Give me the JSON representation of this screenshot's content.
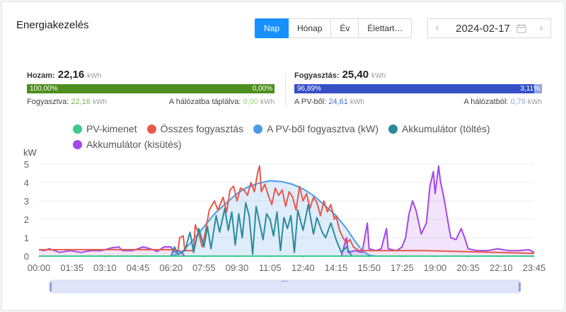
{
  "title": "Energiakezelés",
  "tabs": [
    {
      "label": "Nap",
      "active": true
    },
    {
      "label": "Hónap",
      "active": false
    },
    {
      "label": "Év",
      "active": false
    },
    {
      "label": "Élettart…",
      "active": false
    }
  ],
  "date": {
    "value": "2024-02-17",
    "prev_icon": "chevron-left-icon",
    "next_icon": "chevron-right-icon",
    "calendar_icon": "calendar-icon"
  },
  "yield": {
    "label": "Hozam:",
    "value": "22,16",
    "unit": "kWh",
    "bar_left_pct": "100,00%",
    "bar_right_pct": "0,00%",
    "bar_left_fraction": 1.0,
    "bar_left_color": "#4d8f1e",
    "bar_right_color": "#a7d28a",
    "consumed_label": "Fogyasztva:",
    "consumed_value": "22,16",
    "consumed_unit": "kWh",
    "fed_label": "A hálózatba táplálva:",
    "fed_value": "0,00",
    "fed_unit": "kWh"
  },
  "consumption": {
    "label": "Fogyasztás:",
    "value": "25,40",
    "unit": "kWh",
    "bar_left_pct": "96,89%",
    "bar_right_pct": "3,11%",
    "bar_left_fraction": 0.9689,
    "bar_left_color": "#3550c7",
    "bar_right_color": "#8fa6ef",
    "pv_label": "A PV-ből:",
    "pv_value": "24,61",
    "pv_unit": "kWh",
    "grid_label": "A hálózatból:",
    "grid_value": "0,79",
    "grid_unit": "kWh"
  },
  "legend": [
    {
      "name": "PV-kimenet",
      "color": "#3cc98a"
    },
    {
      "name": "Összes fogyasztás",
      "color": "#e8584b"
    },
    {
      "name": "A PV-ből fogyasztva (kW)",
      "color": "#4c9be8"
    },
    {
      "name": "Akkumulátor (töltés)",
      "color": "#2b8a9b"
    },
    {
      "name": "Akkumulátor (kisütés)",
      "color": "#a348e6"
    }
  ],
  "chart_data": {
    "type": "line",
    "ylabel": "kW",
    "ylim": [
      0,
      5
    ],
    "yticks": [
      0,
      1,
      2,
      3,
      4,
      5
    ],
    "xticks": [
      "00:00",
      "01:35",
      "03:10",
      "04:45",
      "06:20",
      "07:55",
      "09:30",
      "11:05",
      "12:40",
      "14:15",
      "15:50",
      "17:25",
      "19:00",
      "20:35",
      "22:10",
      "23:45"
    ],
    "grid": true,
    "series": [
      {
        "name": "PV-kimenet",
        "color": "#3cc98a",
        "points": [
          [
            "00:00",
            0
          ],
          [
            "23:45",
            0
          ]
        ]
      },
      {
        "name": "A PV-ből fogyasztva (kW)",
        "color": "#4c9be8",
        "area": true,
        "points": [
          [
            "06:20",
            0
          ],
          [
            "06:50",
            0.2
          ],
          [
            "07:20",
            0.8
          ],
          [
            "07:55",
            1.6
          ],
          [
            "08:25",
            2.3
          ],
          [
            "09:00",
            2.9
          ],
          [
            "09:30",
            3.4
          ],
          [
            "10:00",
            3.75
          ],
          [
            "10:30",
            3.95
          ],
          [
            "11:05",
            4.1
          ],
          [
            "11:40",
            4.05
          ],
          [
            "12:10",
            3.9
          ],
          [
            "12:40",
            3.65
          ],
          [
            "13:10",
            3.3
          ],
          [
            "13:40",
            2.8
          ],
          [
            "14:15",
            2.2
          ],
          [
            "14:45",
            1.5
          ],
          [
            "15:10",
            0.8
          ],
          [
            "15:30",
            0.3
          ],
          [
            "15:50",
            0.05
          ],
          [
            "16:10",
            0
          ]
        ]
      },
      {
        "name": "Összes fogyasztás",
        "color": "#e8584b",
        "points": [
          [
            "00:00",
            0.35
          ],
          [
            "06:20",
            0.35
          ],
          [
            "06:40",
            0.3
          ],
          [
            "06:45",
            1.0
          ],
          [
            "06:55",
            1.1
          ],
          [
            "07:00",
            0.3
          ],
          [
            "07:25",
            0.3
          ],
          [
            "07:30",
            1.7
          ],
          [
            "07:40",
            1.2
          ],
          [
            "07:50",
            0.5
          ],
          [
            "08:00",
            1.4
          ],
          [
            "08:10",
            2.5
          ],
          [
            "08:25",
            3.0
          ],
          [
            "08:35",
            2.5
          ],
          [
            "08:50",
            3.2
          ],
          [
            "09:00",
            2.4
          ],
          [
            "09:10",
            3.6
          ],
          [
            "09:20",
            3.8
          ],
          [
            "09:30",
            3.0
          ],
          [
            "09:40",
            3.7
          ],
          [
            "09:50",
            3.6
          ],
          [
            "10:00",
            3.3
          ],
          [
            "10:10",
            4.0
          ],
          [
            "10:20",
            3.5
          ],
          [
            "10:30",
            4.6
          ],
          [
            "10:35",
            4.9
          ],
          [
            "10:40",
            3.5
          ],
          [
            "10:50",
            3.9
          ],
          [
            "11:00",
            3.3
          ],
          [
            "11:10",
            2.8
          ],
          [
            "11:20",
            3.7
          ],
          [
            "11:30",
            3.3
          ],
          [
            "11:40",
            3.6
          ],
          [
            "11:50",
            2.7
          ],
          [
            "12:00",
            3.5
          ],
          [
            "12:10",
            3.2
          ],
          [
            "12:20",
            2.5
          ],
          [
            "12:30",
            3.8
          ],
          [
            "12:40",
            3.0
          ],
          [
            "12:50",
            3.4
          ],
          [
            "13:00",
            2.6
          ],
          [
            "13:10",
            3.2
          ],
          [
            "13:20",
            2.9
          ],
          [
            "13:30",
            2.2
          ],
          [
            "13:40",
            3.0
          ],
          [
            "13:50",
            2.4
          ],
          [
            "14:00",
            2.8
          ],
          [
            "14:10",
            2.0
          ],
          [
            "14:15",
            2.2
          ],
          [
            "14:25",
            1.4
          ],
          [
            "14:35",
            1.0
          ],
          [
            "14:45",
            0.7
          ],
          [
            "14:55",
            0.9
          ],
          [
            "15:05",
            0.5
          ],
          [
            "15:20",
            0.3
          ],
          [
            "16:00",
            0.3
          ],
          [
            "18:30",
            0.3
          ],
          [
            "23:45",
            0.15
          ]
        ]
      },
      {
        "name": "Akkumulátor (töltés)",
        "color": "#2b8a9b",
        "points": [
          [
            "00:00",
            0
          ],
          [
            "06:20",
            0
          ],
          [
            "06:30",
            0.5
          ],
          [
            "06:40",
            0.1
          ],
          [
            "07:00",
            0.3
          ],
          [
            "07:15",
            1.3
          ],
          [
            "07:25",
            0.2
          ],
          [
            "07:40",
            1.5
          ],
          [
            "07:55",
            0.5
          ],
          [
            "08:05",
            1.6
          ],
          [
            "08:15",
            0.4
          ],
          [
            "08:30",
            2.2
          ],
          [
            "08:40",
            1.3
          ],
          [
            "08:55",
            2.6
          ],
          [
            "09:05",
            1.4
          ],
          [
            "09:15",
            2.4
          ],
          [
            "09:25",
            0.6
          ],
          [
            "09:35",
            2.3
          ],
          [
            "09:45",
            1.0
          ],
          [
            "09:55",
            2.9
          ],
          [
            "10:05",
            2.2
          ],
          [
            "10:15",
            0.1
          ],
          [
            "10:25",
            2.7
          ],
          [
            "10:35",
            1.8
          ],
          [
            "10:45",
            0.9
          ],
          [
            "10:55",
            2.3
          ],
          [
            "11:05",
            2.0
          ],
          [
            "11:15",
            1.1
          ],
          [
            "11:25",
            2.4
          ],
          [
            "11:35",
            0.3
          ],
          [
            "11:45",
            2.1
          ],
          [
            "11:55",
            1.5
          ],
          [
            "12:05",
            2.2
          ],
          [
            "12:15",
            0.2
          ],
          [
            "12:25",
            2.5
          ],
          [
            "12:40",
            1.4
          ],
          [
            "12:55",
            2.8
          ],
          [
            "13:10",
            1.2
          ],
          [
            "13:20",
            2.1
          ],
          [
            "13:35",
            1.3
          ],
          [
            "13:45",
            1.0
          ],
          [
            "14:00",
            1.8
          ],
          [
            "14:15",
            0.9
          ],
          [
            "14:30",
            0.2
          ],
          [
            "14:45",
            0.5
          ],
          [
            "15:00",
            0
          ],
          [
            "23:45",
            0
          ]
        ]
      },
      {
        "name": "Akkumulátor (kisütés)",
        "color": "#a348e6",
        "area": true,
        "points": [
          [
            "00:00",
            0.35
          ],
          [
            "00:15",
            0.3
          ],
          [
            "00:30",
            0.4
          ],
          [
            "01:00",
            0.2
          ],
          [
            "01:30",
            0.3
          ],
          [
            "02:00",
            0.2
          ],
          [
            "02:30",
            0.3
          ],
          [
            "03:00",
            0.3
          ],
          [
            "03:30",
            0.45
          ],
          [
            "03:50",
            0.5
          ],
          [
            "04:00",
            0.3
          ],
          [
            "04:30",
            0.3
          ],
          [
            "05:00",
            0.5
          ],
          [
            "05:20",
            0.4
          ],
          [
            "05:40",
            0.25
          ],
          [
            "06:00",
            0.5
          ],
          [
            "06:20",
            0.5
          ],
          [
            "06:30",
            0.2
          ],
          [
            "06:45",
            0.3
          ],
          [
            "07:00",
            0
          ],
          [
            "14:30",
            0
          ],
          [
            "14:45",
            1.0
          ],
          [
            "14:50",
            0.2
          ],
          [
            "15:10",
            0.3
          ],
          [
            "15:30",
            0.2
          ],
          [
            "15:45",
            1.8
          ],
          [
            "15:50",
            0.4
          ],
          [
            "16:10",
            0.3
          ],
          [
            "16:25",
            0.4
          ],
          [
            "16:40",
            1.5
          ],
          [
            "16:45",
            0.4
          ],
          [
            "17:10",
            0.3
          ],
          [
            "17:25",
            0.5
          ],
          [
            "17:35",
            1.0
          ],
          [
            "17:45",
            2.3
          ],
          [
            "17:55",
            3.0
          ],
          [
            "18:05",
            2.5
          ],
          [
            "18:20",
            1.2
          ],
          [
            "18:35",
            1.8
          ],
          [
            "18:45",
            3.8
          ],
          [
            "18:55",
            4.6
          ],
          [
            "19:00",
            3.4
          ],
          [
            "19:10",
            4.9
          ],
          [
            "19:15",
            4.1
          ],
          [
            "19:25",
            3.2
          ],
          [
            "19:35",
            2.1
          ],
          [
            "19:45",
            1.0
          ],
          [
            "20:00",
            0.9
          ],
          [
            "20:15",
            1.5
          ],
          [
            "20:25",
            1.0
          ],
          [
            "20:35",
            0.4
          ],
          [
            "21:00",
            0.3
          ],
          [
            "21:30",
            0.3
          ],
          [
            "22:00",
            0.4
          ],
          [
            "22:30",
            0.3
          ],
          [
            "23:00",
            0.3
          ],
          [
            "23:30",
            0.35
          ],
          [
            "23:45",
            0.2
          ]
        ]
      }
    ]
  }
}
